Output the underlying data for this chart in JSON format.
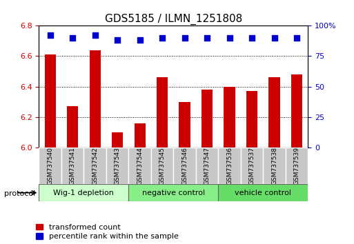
{
  "title": "GDS5185 / ILMN_1251808",
  "samples": [
    "GSM737540",
    "GSM737541",
    "GSM737542",
    "GSM737543",
    "GSM737544",
    "GSM737545",
    "GSM737546",
    "GSM737547",
    "GSM737536",
    "GSM737537",
    "GSM737538",
    "GSM737539"
  ],
  "bar_values": [
    6.61,
    6.27,
    6.64,
    6.1,
    6.16,
    6.46,
    6.3,
    6.38,
    6.4,
    6.37,
    6.46,
    6.48
  ],
  "percentile_values": [
    92,
    90,
    92,
    88,
    88,
    90,
    90,
    90,
    90,
    90,
    90,
    90
  ],
  "ylim_left": [
    6.0,
    6.8
  ],
  "ylim_right": [
    0,
    100
  ],
  "yticks_left": [
    6.0,
    6.2,
    6.4,
    6.6,
    6.8
  ],
  "yticks_right": [
    0,
    25,
    50,
    75,
    100
  ],
  "bar_color": "#cc0000",
  "dot_color": "#0000cc",
  "groups": [
    {
      "label": "Wig-1 depletion",
      "start": 0,
      "end": 3,
      "color": "#ccffcc"
    },
    {
      "label": "negative control",
      "start": 4,
      "end": 7,
      "color": "#88ee88"
    },
    {
      "label": "vehicle control",
      "start": 8,
      "end": 11,
      "color": "#66dd66"
    }
  ],
  "protocol_label": "protocol",
  "legend_items": [
    {
      "color": "#cc0000",
      "label": "transformed count"
    },
    {
      "color": "#0000cc",
      "label": "percentile rank within the sample"
    }
  ],
  "bar_width": 0.5,
  "dot_size": 40,
  "title_fontsize": 11,
  "tick_fontsize": 8,
  "label_fontsize": 6.5,
  "group_fontsize": 8,
  "legend_fontsize": 8
}
